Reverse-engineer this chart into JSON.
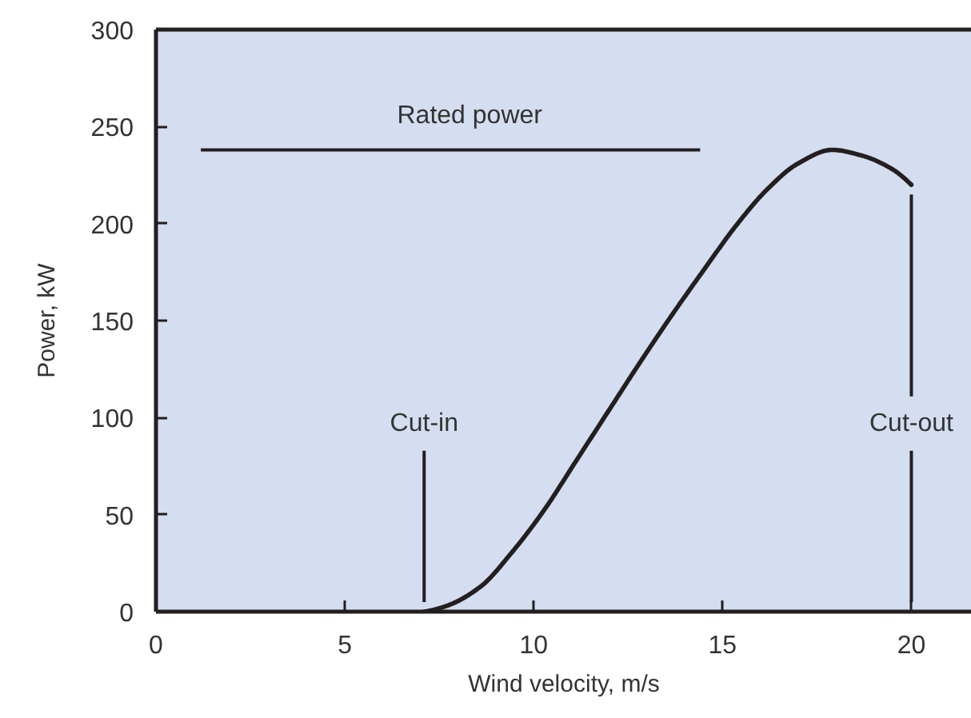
{
  "chart_data": {
    "type": "line",
    "xlabel": "Wind velocity, m/s",
    "ylabel": "Power, kW",
    "x": [
      7.1,
      7.7,
      8.6,
      9.4,
      10.3,
      11.1,
      12.0,
      12.8,
      13.7,
      14.5,
      15.4,
      16.2,
      17.0,
      17.9,
      18.7,
      19.5,
      20.0
    ],
    "values": [
      0,
      3,
      13,
      30,
      53,
      77,
      104,
      128,
      154,
      176,
      200,
      218,
      231,
      238,
      235,
      228,
      220
    ],
    "color": "#231f20",
    "xlim": [
      0,
      21.6
    ],
    "ylim": [
      0,
      300
    ],
    "xticks": [
      0,
      5,
      10,
      15,
      20
    ],
    "yticks": [
      0,
      50,
      100,
      150,
      200,
      250,
      300
    ],
    "ref_lines": [
      {
        "axis": "y",
        "value": 238,
        "label": "Rated power",
        "color": "#231f20"
      },
      {
        "axis": "x",
        "value": 7.1,
        "label": "Cut-in",
        "color": "#231f20"
      },
      {
        "axis": "x",
        "value": 20,
        "label": "Cut-out",
        "color": "#231f20"
      }
    ]
  }
}
